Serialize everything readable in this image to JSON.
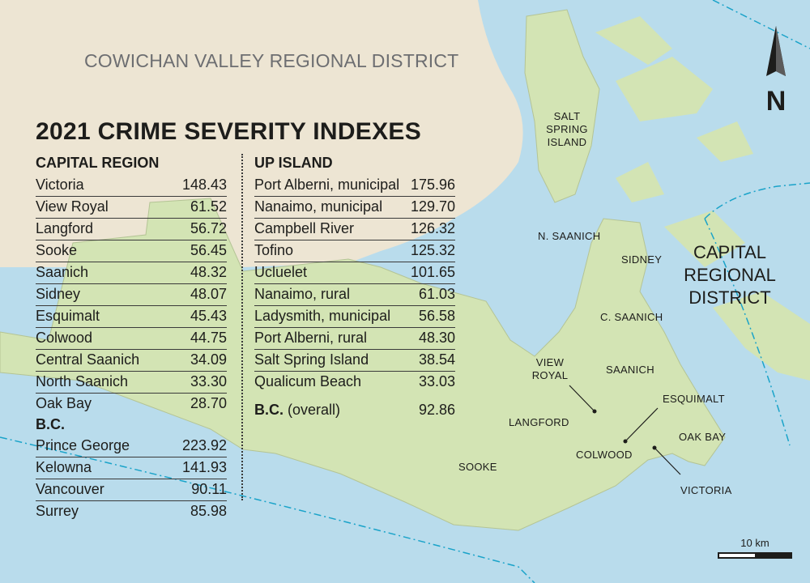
{
  "map": {
    "region_label": "COWICHAN VALLEY REGIONAL DISTRICT",
    "crd_label": [
      "CAPITAL",
      "REGIONAL",
      "DISTRICT"
    ],
    "north_label": "N",
    "scale_label": "10 km",
    "colors": {
      "water": "#b9dcec",
      "land_other": "#ede5d3",
      "land_capital": "#d3e4b4",
      "boundary": "#1aa3c9",
      "text": "#1d1d1b"
    },
    "places": {
      "salt_spring": [
        "SALT",
        "SPRING",
        "ISLAND"
      ],
      "n_saanich": "N. SAANICH",
      "sidney": "SIDNEY",
      "c_saanich": "C. SAANICH",
      "view_royal": [
        "VIEW",
        "ROYAL"
      ],
      "saanich": "SAANICH",
      "esquimalt": "ESQUIMALT",
      "langford": "LANGFORD",
      "oak_bay": "OAK BAY",
      "colwood": "COLWOOD",
      "sooke": "SOOKE",
      "victoria": "VICTORIA"
    }
  },
  "table": {
    "title": "2021 CRIME SEVERITY INDEXES",
    "capital_region": {
      "heading": "CAPITAL REGION",
      "rows": [
        {
          "name": "Victoria",
          "value": "148.43"
        },
        {
          "name": "View Royal",
          "value": "61.52"
        },
        {
          "name": "Langford",
          "value": "56.72"
        },
        {
          "name": "Sooke",
          "value": "56.45"
        },
        {
          "name": "Saanich",
          "value": "48.32"
        },
        {
          "name": "Sidney",
          "value": "48.07"
        },
        {
          "name": "Esquimalt",
          "value": "45.43"
        },
        {
          "name": "Colwood",
          "value": "44.75"
        },
        {
          "name": "Central Saanich",
          "value": "34.09"
        },
        {
          "name": "North Saanich",
          "value": "33.30"
        },
        {
          "name": "Oak Bay",
          "value": "28.70"
        }
      ]
    },
    "bc": {
      "heading": "B.C.",
      "rows": [
        {
          "name": "Prince George",
          "value": "223.92"
        },
        {
          "name": "Kelowna",
          "value": "141.93"
        },
        {
          "name": "Vancouver",
          "value": "90.11"
        },
        {
          "name": "Surrey",
          "value": "85.98"
        }
      ]
    },
    "up_island": {
      "heading": "UP ISLAND",
      "rows": [
        {
          "name": "Port Alberni, municipal",
          "value": "175.96"
        },
        {
          "name": "Nanaimo, municipal",
          "value": "129.70"
        },
        {
          "name": "Campbell River",
          "value": "126.32"
        },
        {
          "name": "Tofino",
          "value": "125.32"
        },
        {
          "name": "Ucluelet",
          "value": "101.65"
        },
        {
          "name": "Nanaimo, rural",
          "value": "61.03"
        },
        {
          "name": "Ladysmith, municipal",
          "value": "56.58"
        },
        {
          "name": "Port Alberni, rural",
          "value": "48.30"
        },
        {
          "name": "Salt Spring Island",
          "value": "38.54"
        },
        {
          "name": "Qualicum Beach",
          "value": "33.03"
        }
      ]
    },
    "overall": {
      "label_bold": "B.C.",
      "label_rest": " (overall)",
      "value": "92.86"
    }
  }
}
